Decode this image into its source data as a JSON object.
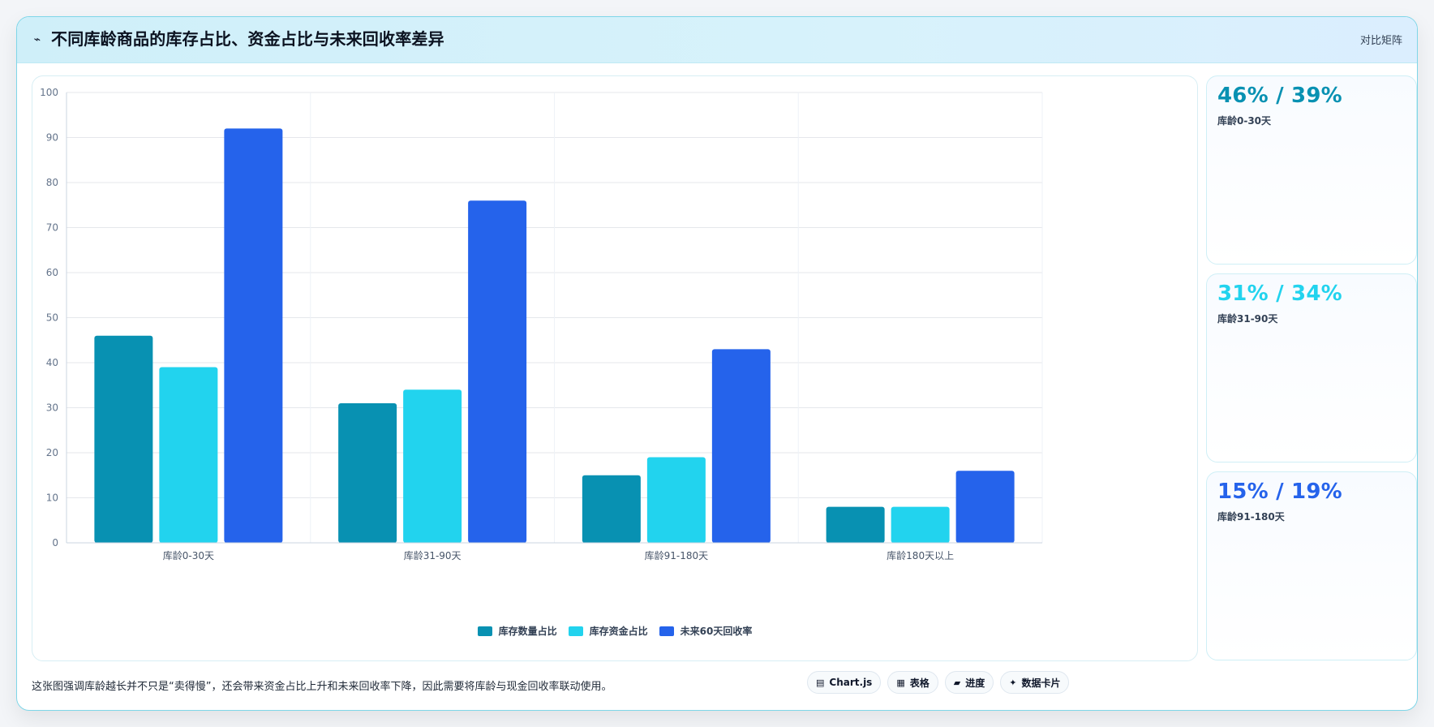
{
  "header": {
    "icon": "bolt-icon",
    "title": "不同库龄商品的库存占比、资金占比与未来回收率差异",
    "tag": "对比矩阵"
  },
  "chart_data": {
    "type": "bar",
    "categories": [
      "库龄0-30天",
      "库龄31-90天",
      "库龄91-180天",
      "库龄180天以上"
    ],
    "series": [
      {
        "name": "库存数量占比",
        "color": "#0891b2",
        "values": [
          46,
          31,
          15,
          8
        ]
      },
      {
        "name": "库存资金占比",
        "color": "#22d3ee",
        "values": [
          39,
          34,
          19,
          8
        ]
      },
      {
        "name": "未来60天回收率",
        "color": "#2563eb",
        "values": [
          92,
          76,
          43,
          16
        ]
      }
    ],
    "ylim": [
      0,
      100
    ],
    "yticks": [
      0,
      10,
      20,
      30,
      40,
      50,
      60,
      70,
      80,
      90,
      100
    ],
    "grid": true,
    "legend_position": "bottom-center"
  },
  "side_cards": [
    {
      "value": "46% / 39%",
      "label": "库龄0-30天",
      "color": "#0891b2"
    },
    {
      "value": "31% / 34%",
      "label": "库龄31-90天",
      "color": "#22d3ee"
    },
    {
      "value": "15% / 19%",
      "label": "库龄91-180天",
      "color": "#2563eb"
    }
  ],
  "footer": {
    "note": "这张图强调库龄越长并不只是“卖得慢”，还会带来资金占比上升和未来回收率下降，因此需要将库龄与现金回收率联动使用。",
    "pills": [
      {
        "icon": "chart-icon",
        "glyph": "▤",
        "label": "Chart.js"
      },
      {
        "icon": "table-icon",
        "glyph": "▦",
        "label": "表格"
      },
      {
        "icon": "progress-icon",
        "glyph": "▰",
        "label": "进度"
      },
      {
        "icon": "sparkle-icon",
        "glyph": "✦",
        "label": "数据卡片"
      }
    ]
  }
}
